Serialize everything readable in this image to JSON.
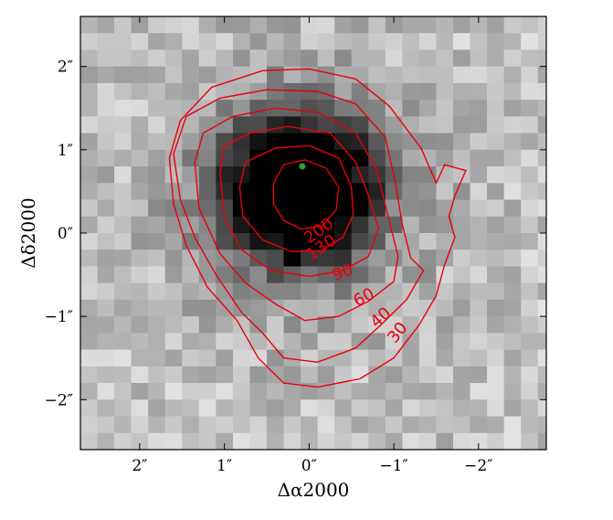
{
  "chart_data": {
    "type": "heatmap",
    "title": "",
    "xlabel": "Δα2000",
    "ylabel": "Δδ2000",
    "xlim": [
      2.7,
      -2.8
    ],
    "ylim": [
      -2.6,
      2.6
    ],
    "x_ticks": [
      {
        "value": 2,
        "label": "2″"
      },
      {
        "value": 1,
        "label": "1″"
      },
      {
        "value": 0,
        "label": "0″"
      },
      {
        "value": -1,
        "label": "−1″"
      },
      {
        "value": -2,
        "label": "−2″"
      }
    ],
    "y_ticks": [
      {
        "value": 2,
        "label": "2″"
      },
      {
        "value": 1,
        "label": "1″"
      },
      {
        "value": 0,
        "label": "0″"
      },
      {
        "value": -1,
        "label": "−1″"
      },
      {
        "value": -2,
        "label": "−2″"
      }
    ],
    "grid": false,
    "colormap": "grayscale (dark = high)",
    "pixel_size_arcsec": 0.2,
    "source": {
      "x": 0.1,
      "y": 0.5,
      "sigma": 0.55,
      "peak": 1.0
    },
    "marker": {
      "x": 0.08,
      "y": 0.8,
      "color": "#2ca02c"
    },
    "contour_color": "#e8000b",
    "contours": [
      {
        "level": "30",
        "label_at": {
          "x": -1.05,
          "y": -1.2,
          "angle": -52
        },
        "points": [
          [
            1.65,
            0.9
          ],
          [
            1.52,
            1.35
          ],
          [
            1.15,
            1.75
          ],
          [
            0.55,
            1.95
          ],
          [
            0.0,
            1.97
          ],
          [
            -0.55,
            1.85
          ],
          [
            -0.95,
            1.52
          ],
          [
            -1.32,
            1.02
          ],
          [
            -1.5,
            0.6
          ],
          [
            -1.6,
            0.82
          ],
          [
            -1.85,
            0.75
          ],
          [
            -1.72,
            0.45
          ],
          [
            -1.65,
            0.2
          ],
          [
            -1.72,
            -0.05
          ],
          [
            -1.6,
            -0.38
          ],
          [
            -1.5,
            -0.75
          ],
          [
            -1.3,
            -1.1
          ],
          [
            -1.0,
            -1.5
          ],
          [
            -0.6,
            -1.75
          ],
          [
            -0.1,
            -1.85
          ],
          [
            0.3,
            -1.8
          ],
          [
            0.6,
            -1.5
          ],
          [
            0.85,
            -1.05
          ],
          [
            1.2,
            -0.65
          ],
          [
            1.45,
            -0.15
          ],
          [
            1.6,
            0.35
          ],
          [
            1.65,
            0.9
          ]
        ]
      },
      {
        "level": "40",
        "label_at": {
          "x": -0.85,
          "y": -1.02,
          "angle": -42
        },
        "points": [
          [
            1.6,
            0.95
          ],
          [
            1.45,
            1.4
          ],
          [
            1.05,
            1.62
          ],
          [
            0.5,
            1.72
          ],
          [
            -0.1,
            1.7
          ],
          [
            -0.55,
            1.55
          ],
          [
            -0.9,
            1.15
          ],
          [
            -1.02,
            0.6
          ],
          [
            -1.1,
            0.1
          ],
          [
            -1.2,
            -0.3
          ],
          [
            -1.35,
            -0.45
          ],
          [
            -1.15,
            -0.8
          ],
          [
            -0.85,
            -1.1
          ],
          [
            -0.55,
            -1.38
          ],
          [
            -0.1,
            -1.55
          ],
          [
            0.3,
            -1.5
          ],
          [
            0.55,
            -1.2
          ],
          [
            0.8,
            -0.95
          ],
          [
            1.1,
            -0.5
          ],
          [
            1.35,
            -0.05
          ],
          [
            1.52,
            0.4
          ],
          [
            1.6,
            0.95
          ]
        ]
      },
      {
        "level": "60",
        "label_at": {
          "x": -0.65,
          "y": -0.78,
          "angle": -28
        },
        "points": [
          [
            1.35,
            0.85
          ],
          [
            1.25,
            1.2
          ],
          [
            0.9,
            1.4
          ],
          [
            0.4,
            1.5
          ],
          [
            -0.1,
            1.45
          ],
          [
            -0.55,
            1.2
          ],
          [
            -0.8,
            0.75
          ],
          [
            -0.92,
            0.25
          ],
          [
            -1.05,
            -0.28
          ],
          [
            -1.0,
            -0.58
          ],
          [
            -0.7,
            -0.82
          ],
          [
            -0.35,
            -1.0
          ],
          [
            0.05,
            -1.05
          ],
          [
            0.4,
            -0.85
          ],
          [
            0.75,
            -0.6
          ],
          [
            1.05,
            -0.25
          ],
          [
            1.3,
            0.3
          ],
          [
            1.35,
            0.85
          ]
        ]
      },
      {
        "level": "90",
        "label_at": {
          "x": -0.4,
          "y": -0.48,
          "angle": -20
        },
        "points": [
          [
            1.05,
            0.72
          ],
          [
            1.0,
            1.05
          ],
          [
            0.7,
            1.2
          ],
          [
            0.25,
            1.28
          ],
          [
            -0.25,
            1.2
          ],
          [
            -0.55,
            0.85
          ],
          [
            -0.7,
            0.45
          ],
          [
            -0.82,
            0.05
          ],
          [
            -0.7,
            -0.28
          ],
          [
            -0.4,
            -0.45
          ],
          [
            0.0,
            -0.52
          ],
          [
            0.45,
            -0.45
          ],
          [
            0.8,
            -0.2
          ],
          [
            1.0,
            0.2
          ],
          [
            1.05,
            0.72
          ]
        ]
      },
      {
        "level": "130",
        "label_at": {
          "x": -0.15,
          "y": -0.18,
          "angle": -35
        },
        "points": [
          [
            0.82,
            0.55
          ],
          [
            0.75,
            0.85
          ],
          [
            0.4,
            1.02
          ],
          [
            0.0,
            1.05
          ],
          [
            -0.35,
            0.9
          ],
          [
            -0.5,
            0.55
          ],
          [
            -0.52,
            0.22
          ],
          [
            -0.4,
            -0.05
          ],
          [
            -0.12,
            -0.22
          ],
          [
            0.22,
            -0.22
          ],
          [
            0.55,
            -0.08
          ],
          [
            0.78,
            0.2
          ],
          [
            0.82,
            0.55
          ]
        ]
      },
      {
        "level": "200",
        "label_at": {
          "x": -0.12,
          "y": 0.02,
          "angle": -35
        },
        "points": [
          [
            0.42,
            0.6
          ],
          [
            0.3,
            0.82
          ],
          [
            0.05,
            0.88
          ],
          [
            -0.2,
            0.78
          ],
          [
            -0.35,
            0.55
          ],
          [
            -0.32,
            0.28
          ],
          [
            -0.15,
            0.08
          ],
          [
            0.1,
            0.05
          ],
          [
            0.3,
            0.15
          ],
          [
            0.42,
            0.35
          ],
          [
            0.42,
            0.6
          ]
        ]
      }
    ]
  }
}
